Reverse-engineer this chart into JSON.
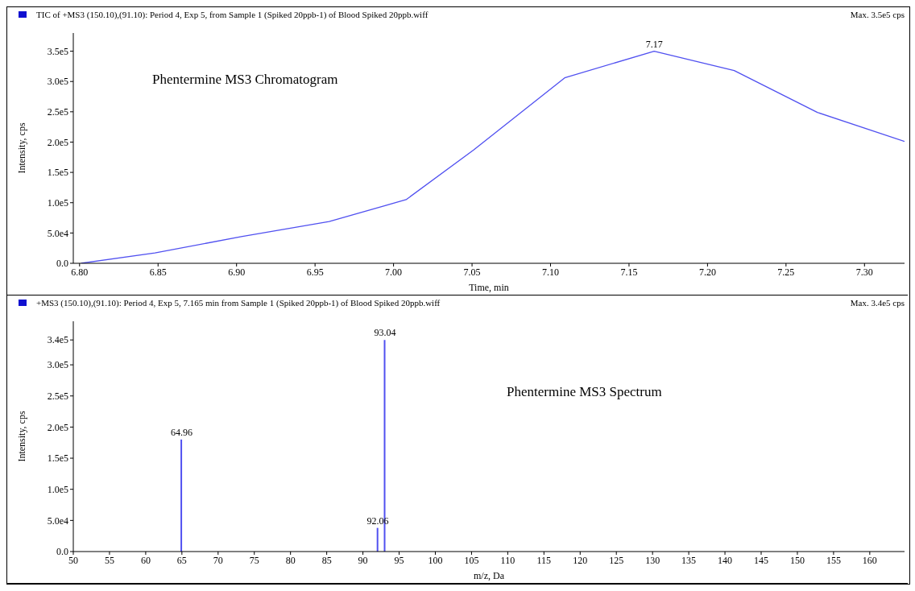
{
  "chart_data": [
    {
      "type": "line",
      "title": "TIC of +MS3 (150.10),(91.10): Period 4, Exp 5, from Sample 1 (Spiked 20ppb-1) of Blood Spiked 20ppb.wiff",
      "subtitle": "Max. 3.5e5 cps",
      "xlabel": "Time, min",
      "ylabel": "Intensity, cps",
      "annotations": [
        "Phentermine MS3 Chromatogram",
        {
          "text": "7.17",
          "x": 7.166,
          "y": 350000
        }
      ],
      "series": [
        {
          "color": "#5050f0",
          "x": [
            6.801,
            6.848,
            6.903,
            6.959,
            7.008,
            7.051,
            7.109,
            7.166,
            7.217,
            7.27,
            7.3255
          ],
          "values": [
            0,
            17000,
            44000,
            69000,
            105000,
            187000,
            306000,
            350000,
            318000,
            249000,
            201000
          ]
        }
      ],
      "xlim": [
        6.796,
        7.3255
      ],
      "xticks": [
        {
          "value": 6.8,
          "label": "6.80"
        },
        6.85,
        {
          "value": 6.9,
          "label": "6.90"
        },
        6.95,
        {
          "value": 7,
          "label": "7.00"
        },
        7.05,
        {
          "value": 7.1,
          "label": "7.10"
        },
        7.15,
        {
          "value": 7.2,
          "label": "7.20"
        },
        7.25,
        {
          "value": 7.3,
          "label": "7.30"
        }
      ],
      "ylim": [
        0,
        380000
      ],
      "yticks": [
        {
          "value": 0,
          "label": "0.0"
        },
        {
          "value": 50000,
          "label": "5.0e4"
        },
        {
          "value": 100000,
          "label": "1.0e5"
        },
        {
          "value": 150000,
          "label": "1.5e5"
        },
        {
          "value": 200000,
          "label": "2.0e5"
        },
        {
          "value": 250000,
          "label": "2.5e5"
        },
        {
          "value": 300000,
          "label": "3.0e5"
        },
        {
          "value": 350000,
          "label": "3.5e5"
        }
      ],
      "grid": false,
      "legend": false,
      "marker": "none",
      "line_style": "solid"
    },
    {
      "type": "bar",
      "title": "+MS3 (150.10),(91.10): Period 4, Exp 5, 7.165 min from Sample 1 (Spiked 20ppb-1) of Blood Spiked 20ppb.wiff",
      "subtitle": "Max. 3.4e5 cps",
      "xlabel": "m/z, Da",
      "ylabel": "Intensity, cps",
      "annotations": [
        "Phentermine MS3 Spectrum",
        {
          "text": "64.96",
          "x": 64.96,
          "y": 180000
        },
        {
          "text": "92.06",
          "x": 92.06,
          "y": 38000
        },
        {
          "text": "93.04",
          "x": 93.04,
          "y": 340000
        }
      ],
      "series": [
        {
          "color": "#5050f0",
          "x": [
            64.96,
            92.06,
            93.04
          ],
          "values": [
            180000,
            38000,
            340000
          ]
        }
      ],
      "xlim": [
        50,
        164.8
      ],
      "xticks": [
        50,
        55,
        60,
        65,
        70,
        75,
        80,
        85,
        90,
        95,
        100,
        105,
        110,
        115,
        120,
        125,
        130,
        135,
        140,
        145,
        150,
        155,
        160
      ],
      "ylim": [
        0,
        370000
      ],
      "yticks": [
        {
          "value": 0,
          "label": "0.0"
        },
        {
          "value": 50000,
          "label": "5.0e4"
        },
        {
          "value": 100000,
          "label": "1.0e5"
        },
        {
          "value": 150000,
          "label": "1.5e5"
        },
        {
          "value": 200000,
          "label": "2.0e5"
        },
        {
          "value": 250000,
          "label": "2.5e5"
        },
        {
          "value": 300000,
          "label": "3.0e5"
        },
        {
          "value": 340000,
          "label": "3.4e5"
        }
      ],
      "grid": false,
      "legend": false
    }
  ]
}
